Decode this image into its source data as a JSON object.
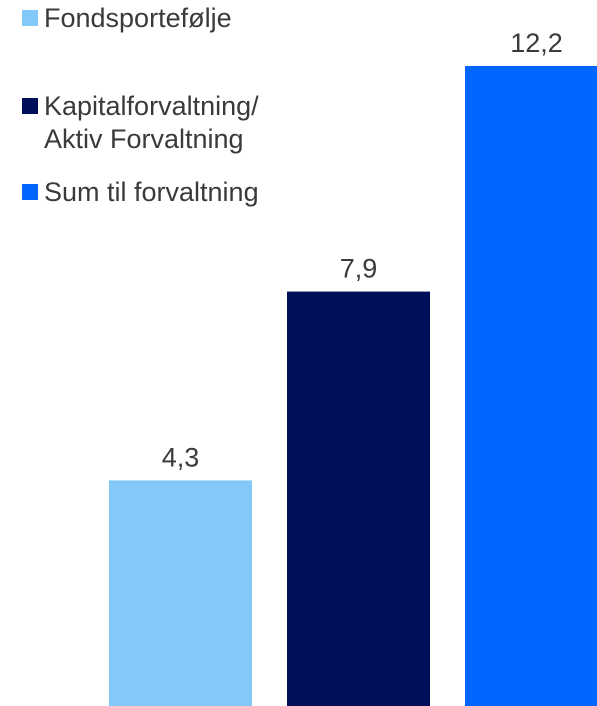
{
  "chart_data": {
    "type": "bar",
    "categories": [
      "Fondsportefølje",
      "Kapitalforvaltning/\nAktiv Forvaltning",
      "Sum til forvaltning"
    ],
    "values": [
      4.3,
      7.9,
      12.2
    ],
    "value_labels": [
      "4,3",
      "7,9",
      "12,2"
    ],
    "colors": [
      "#82c8f8",
      "#000f5a",
      "#0066ff"
    ],
    "title": "",
    "xlabel": "",
    "ylabel": "",
    "ylim": [
      0,
      12.2
    ],
    "grid": false,
    "legend_position": "top-left"
  },
  "legend": {
    "items": [
      {
        "label": "Fondsportefølje",
        "color": "#82c8f8"
      },
      {
        "label": "Kapitalforvaltning/\nAktiv Forvaltning",
        "color": "#000f5a"
      },
      {
        "label": "Sum til forvaltning",
        "color": "#0066ff"
      }
    ]
  },
  "colors": {
    "label_text": "#3a3a3a",
    "background": "#ffffff"
  }
}
